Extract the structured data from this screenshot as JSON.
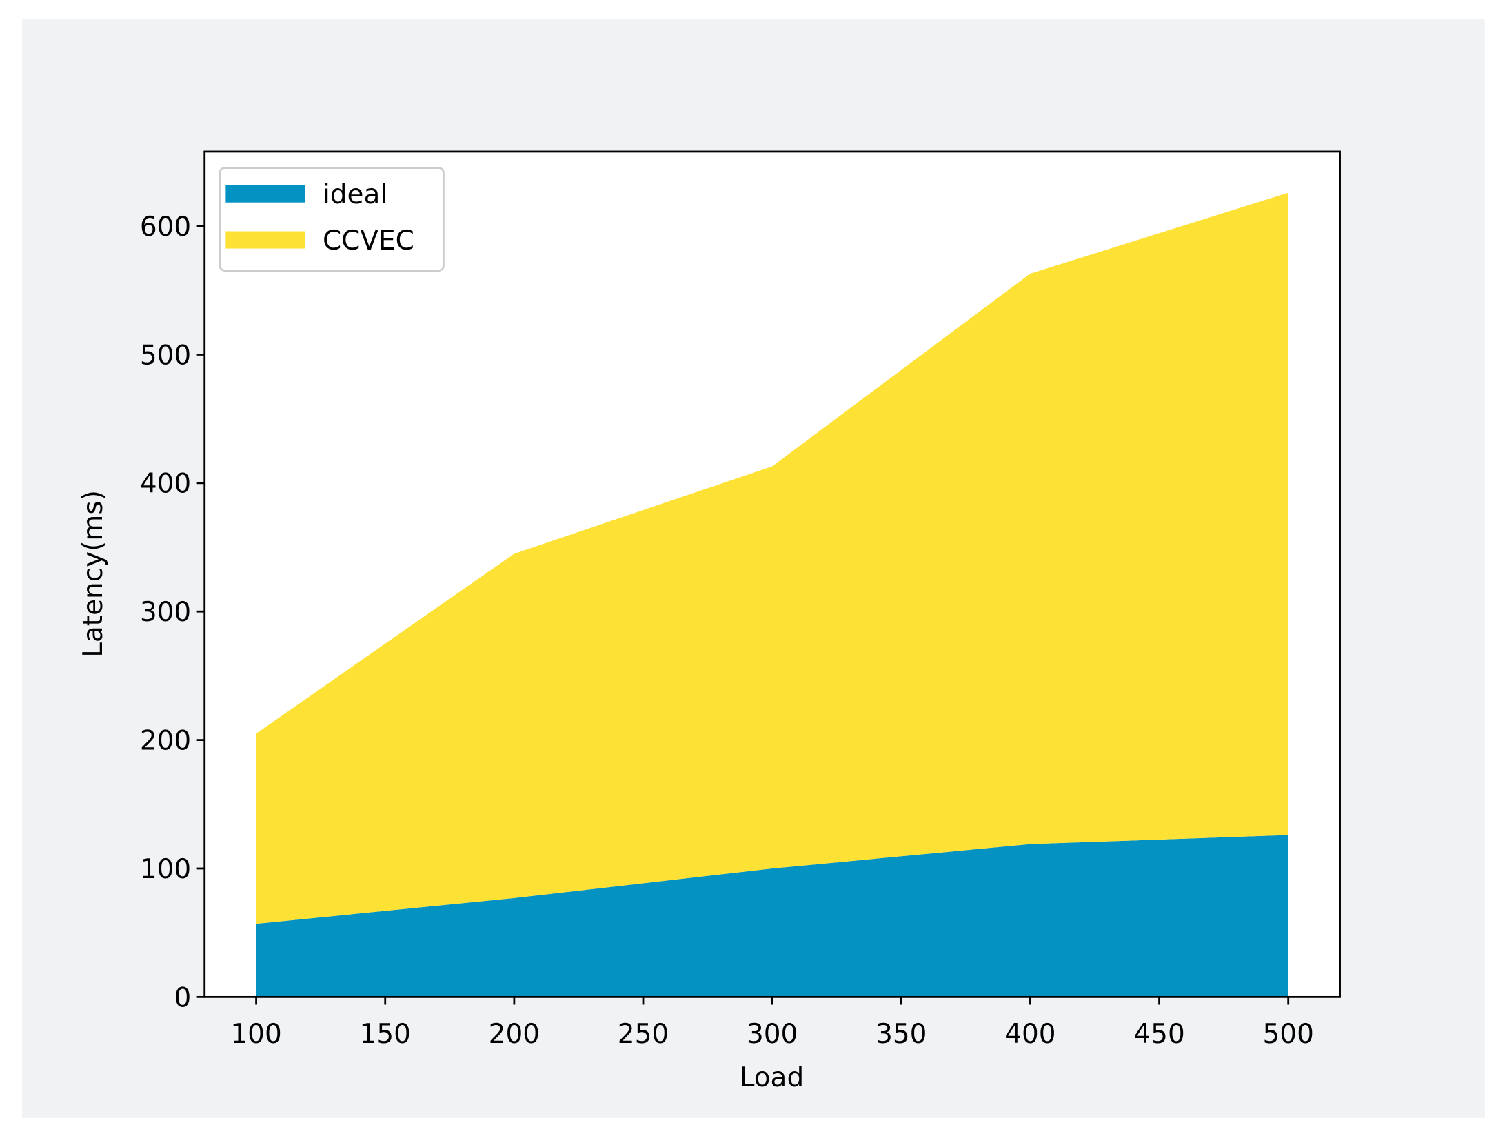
{
  "chart_data": {
    "type": "stacked-area",
    "x_label": "Load",
    "y_label": "Latency(ms)",
    "x": [
      100,
      200,
      300,
      400,
      500
    ],
    "series": [
      {
        "name": "ideal",
        "color": "#0492c2",
        "values": [
          57,
          77,
          100,
          119,
          126
        ]
      },
      {
        "name": "CCVEC",
        "color": "#fde135",
        "values": [
          148,
          268,
          313,
          444,
          500
        ]
      }
    ],
    "xlim": [
      80,
      520
    ],
    "ylim": [
      0,
      658
    ],
    "xticks": [
      100,
      150,
      200,
      250,
      300,
      350,
      400,
      450,
      500
    ],
    "yticks": [
      0,
      100,
      200,
      300,
      400,
      500,
      600
    ],
    "legend": "upper-left",
    "grid": false
  }
}
